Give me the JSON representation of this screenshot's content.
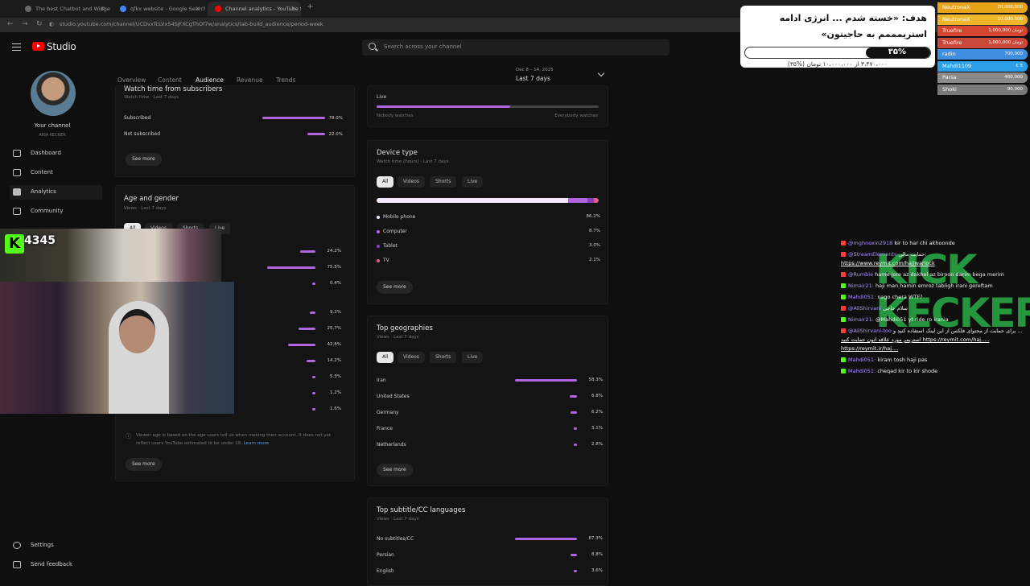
{
  "browser": {
    "tabs": [
      {
        "label": "The best Chatbot and Widgets",
        "active": false,
        "fav_color": "#6a6a6a"
      },
      {
        "label": "qfkx website - Google Search",
        "active": false,
        "fav_color": "#4285f4"
      },
      {
        "label": "Channel analytics - YouTube St...",
        "active": true,
        "fav_color": "#ff0000"
      }
    ],
    "url": "studio.youtube.com/channel/UCDvxTcLVx54SjFXCgThOf7w/analytics/tab-build_audience/period-week"
  },
  "header": {
    "studio_label": "Studio",
    "search_placeholder": "Search across your channel"
  },
  "sidebar": {
    "channel_label": "Your channel",
    "channel_name": "ARIA KECKER",
    "items": [
      {
        "label": "Dashboard",
        "icon": "dashboard-icon",
        "active": false
      },
      {
        "label": "Content",
        "icon": "content-icon",
        "active": false
      },
      {
        "label": "Analytics",
        "icon": "analytics-icon",
        "active": true
      },
      {
        "label": "Community",
        "icon": "community-icon",
        "active": false
      }
    ],
    "bottom_items": [
      {
        "label": "Settings",
        "icon": "gear-icon"
      },
      {
        "label": "Send feedback",
        "icon": "feedback-icon"
      }
    ]
  },
  "analytics_tabs": [
    "Overview",
    "Content",
    "Audience",
    "Revenue",
    "Trends"
  ],
  "active_tab": "Audience",
  "date": {
    "range": "Dec 8 – 14, 2025",
    "label": "Last 7 days"
  },
  "subscribers_card": {
    "title": "Watch time from subscribers",
    "subtitle": "Watch time · Last 7 days",
    "rows": [
      {
        "label": "Subscribed",
        "value": "78.0%",
        "fraction": 0.78
      },
      {
        "label": "Not subscribed",
        "value": "22.0%",
        "fraction": 0.22
      }
    ],
    "see_more": "See more"
  },
  "age_gender_card": {
    "title": "Age and gender",
    "subtitle": "Views · Last 7 days",
    "tabs": [
      "All",
      "Videos",
      "Shorts",
      "Live"
    ],
    "gender_values": [
      {
        "value": "24.2%",
        "fraction": 0.242
      },
      {
        "value": "75.5%",
        "fraction": 0.755
      },
      {
        "value": "0.4%",
        "fraction": 0.004
      }
    ],
    "age_values": [
      {
        "value": "9.2%",
        "fraction": 0.092
      },
      {
        "value": "25.7%",
        "fraction": 0.257
      },
      {
        "value": "42.8%",
        "fraction": 0.428
      },
      {
        "value": "14.2%",
        "fraction": 0.142
      },
      {
        "value": "5.3%",
        "fraction": 0.053
      },
      {
        "value": "1.2%",
        "fraction": 0.012
      },
      {
        "value": "1.6%",
        "fraction": 0.016
      }
    ],
    "note": "Viewer age is based on the age users tell us when making their account. It does not yet reflect users YouTube estimated to be under 18.",
    "note_link": "Learn more",
    "see_more": "See more"
  },
  "live_card": {
    "label": "Live",
    "left_caption": "Nobody watches",
    "right_caption": "Everybody watches",
    "fraction": 0.6
  },
  "device_card": {
    "title": "Device type",
    "subtitle": "Watch time (hours) · Last 7 days",
    "tabs": [
      "All",
      "Videos",
      "Shorts",
      "Live"
    ],
    "rows": [
      {
        "label": "Mobile phone",
        "value": "86.2%",
        "fraction": 0.862,
        "color": "#f3e9ff"
      },
      {
        "label": "Computer",
        "value": "8.7%",
        "fraction": 0.087,
        "color": "#b166e0"
      },
      {
        "label": "Tablet",
        "value": "3.0%",
        "fraction": 0.03,
        "color": "#8a3fc0"
      },
      {
        "label": "TV",
        "value": "2.1%",
        "fraction": 0.021,
        "color": "#e05a8a"
      }
    ],
    "see_more": "See more"
  },
  "geo_card": {
    "title": "Top geographies",
    "subtitle": "Views · Last 7 days",
    "tabs": [
      "All",
      "Videos",
      "Shorts",
      "Live"
    ],
    "rows": [
      {
        "label": "Iran",
        "value": "58.3%",
        "fraction": 0.583
      },
      {
        "label": "United States",
        "value": "6.8%",
        "fraction": 0.068
      },
      {
        "label": "Germany",
        "value": "6.2%",
        "fraction": 0.062
      },
      {
        "label": "France",
        "value": "3.1%",
        "fraction": 0.031
      },
      {
        "label": "Netherlands",
        "value": "2.8%",
        "fraction": 0.028
      }
    ],
    "see_more": "See more"
  },
  "lang_card": {
    "title": "Top subtitle/CC languages",
    "subtitle": "Views · Last 7 days",
    "rows": [
      {
        "label": "No subtitles/CC",
        "value": "87.3%",
        "fraction": 0.873
      },
      {
        "label": "Persian",
        "value": "8.8%",
        "fraction": 0.088
      },
      {
        "label": "English",
        "value": "3.6%",
        "fraction": 0.036
      }
    ]
  },
  "goal": {
    "title": "هدف: «خسته شدم ... انرژی ادامه استریمممم به حاجیتون»",
    "percent_label": "۳۵%",
    "fraction": 0.35,
    "subtitle": "۳،۴۷۰،۰۰۰ از ۱۰،۰۰۰،۰۰۰ تومان (%۳۵)"
  },
  "donors": [
    {
      "name": "NeutronaX",
      "amount": "20,000,000",
      "color": "#e8a51a"
    },
    {
      "name": "NeutronaX",
      "amount": "10,000,000",
      "color": "#f0b62a"
    },
    {
      "name": "Truefire",
      "amount": "1,000,000 تومان",
      "color": "#d6452f"
    },
    {
      "name": "Truefire",
      "amount": "1,000,000 تومان",
      "color": "#c94a3a"
    },
    {
      "name": "radin",
      "amount": "700,000",
      "color": "#3f8fe0"
    },
    {
      "name": "Mahdi1109",
      "amount": "€ 5",
      "color": "#2d9fe8"
    },
    {
      "name": "Parsa",
      "amount": "400,000",
      "color": "#8a8a8a"
    },
    {
      "name": "Shoki",
      "amount": "90,000",
      "color": "#7a7a7a"
    }
  ],
  "kick": {
    "viewers": "4345",
    "overlay_text": "KICK KECKER"
  },
  "chat": [
    {
      "badge": "youtube",
      "user": "@mghnoxin2918",
      "text": "kir to har chi akhoonde"
    },
    {
      "badge": "youtube",
      "user": "@StreamElements",
      "text": "حمایت مالی:"
    },
    {
      "badge": "link",
      "user": "",
      "text": "https://www.reymit.com/hajiwarlock"
    },
    {
      "badge": "youtube",
      "user": "@Rumble",
      "text": "hame jore az dakhel az biroon darim bega merim"
    },
    {
      "badge": "kick",
      "user": "Nimair21:",
      "text": "haji man hamin emroz tabligh irani gereftam"
    },
    {
      "badge": "kick",
      "user": "Mahdi051:",
      "text": "nago chera WTF?"
    },
    {
      "badge": "youtube",
      "user": "@AliShirvani",
      "text": "سلام حاجی"
    },
    {
      "badge": "kick",
      "user": "Nimair21:",
      "text": "@Mahdi051 yt ride ro irania"
    },
    {
      "badge": "youtube",
      "user": "@AliShirvani-too",
      "text": "برای حمایت از محتوای فلکس از این لینک استفاده کنید و ..."
    },
    {
      "badge": "link",
      "user": "",
      "text": "استریمر مورد علاقه اتون حمایت کنید https://reymit.com/haj....."
    },
    {
      "badge": "link",
      "user": "",
      "text": "https://reymit.ir/haj...."
    },
    {
      "badge": "kick",
      "user": "Mahdi051:",
      "text": "kiram tosh haji pas"
    },
    {
      "badge": "kick",
      "user": "Mahdi051:",
      "text": "cheqad kir to kir shode"
    }
  ],
  "colors": {
    "bar": "#b166e0",
    "kick_green": "#53fc18",
    "yt_red": "#ff0000"
  }
}
